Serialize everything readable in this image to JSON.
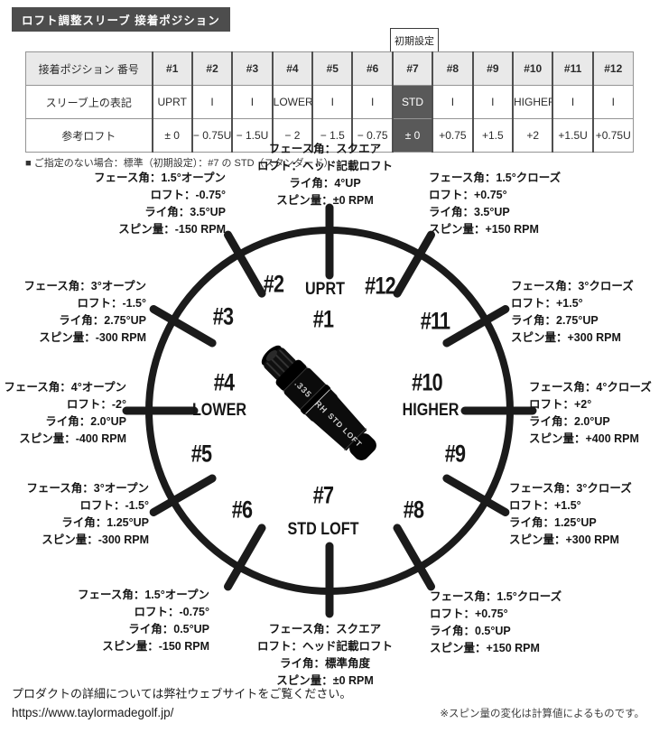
{
  "title": "ロフト調整スリーブ 接着ポジション",
  "table": {
    "preset_label": "初期設定",
    "rows": [
      {
        "label": "接着ポジション 番号",
        "cells": [
          "#1",
          "#2",
          "#3",
          "#4",
          "#5",
          "#6",
          "#7",
          "#8",
          "#9",
          "#10",
          "#11",
          "#12"
        ]
      },
      {
        "label": "スリーブ上の表記",
        "cells": [
          "UPRT",
          "I",
          "I",
          "LOWER",
          "I",
          "I",
          "STD",
          "I",
          "I",
          "HIGHER",
          "I",
          "I"
        ]
      },
      {
        "label": "参考ロフト",
        "cells": [
          "± 0",
          "− 0.75U",
          "− 1.5U",
          "− 2",
          "− 1.5",
          "− 0.75",
          "± 0",
          "+0.75",
          "+1.5",
          "+2",
          "+1.5U",
          "+0.75U"
        ]
      }
    ],
    "note": "■ ご指定のない場合：標準（初期設定）：#7 の STD（スタンダード）"
  },
  "dial": {
    "positions": [
      {
        "number": "#1",
        "word": "UPRT"
      },
      {
        "number": "#2"
      },
      {
        "number": "#3"
      },
      {
        "number": "#4",
        "word": "LOWER"
      },
      {
        "number": "#5"
      },
      {
        "number": "#6"
      },
      {
        "number": "#7",
        "word": "STD LOFT"
      },
      {
        "number": "#8"
      },
      {
        "number": "#9"
      },
      {
        "number": "#10",
        "word": "HIGHER"
      },
      {
        "number": "#11"
      },
      {
        "number": "#12"
      }
    ],
    "annotations": [
      {
        "id": "p2",
        "for": "#2",
        "lines": [
          "フェース角：1.5°オープン",
          "ロフト：-0.75°",
          "ライ角：3.5°UP",
          "スピン量：-150 RPM"
        ]
      },
      {
        "id": "top",
        "for": "#1",
        "lines": [
          "フェース角：スクエア",
          "ロフト：ヘッド記載ロフト",
          "ライ角：4°UP",
          "スピン量：±0 RPM"
        ]
      },
      {
        "id": "p12",
        "for": "#12",
        "lines": [
          "フェース角：1.5°クローズ",
          "ロフト：+0.75°",
          "ライ角：3.5°UP",
          "スピン量：+150 RPM"
        ]
      },
      {
        "id": "p3",
        "for": "#3",
        "lines": [
          "フェース角：3°オープン",
          "ロフト：-1.5°",
          "ライ角：2.75°UP",
          "スピン量：-300 RPM"
        ]
      },
      {
        "id": "p11",
        "for": "#11",
        "lines": [
          "フェース角：3°クローズ",
          "ロフト：+1.5°",
          "ライ角：2.75°UP",
          "スピン量：+300 RPM"
        ]
      },
      {
        "id": "p4",
        "for": "#4",
        "lines": [
          "フェース角：4°オープン",
          "ロフト：-2°",
          "ライ角：2.0°UP",
          "スピン量：-400 RPM"
        ]
      },
      {
        "id": "p10",
        "for": "#10",
        "lines": [
          "フェース角：4°クローズ",
          "ロフト：+2°",
          "ライ角：2.0°UP",
          "スピン量：+400 RPM"
        ]
      },
      {
        "id": "p5",
        "for": "#5",
        "lines": [
          "フェース角：3°オープン",
          "ロフト：-1.5°",
          "ライ角：1.25°UP",
          "スピン量：-300 RPM"
        ]
      },
      {
        "id": "p9",
        "for": "#9",
        "lines": [
          "フェース角：3°クローズ",
          "ロフト：+1.5°",
          "ライ角：1.25°UP",
          "スピン量：+300 RPM"
        ]
      },
      {
        "id": "p6",
        "for": "#6",
        "lines": [
          "フェース角：1.5°オープン",
          "ロフト：-0.75°",
          "ライ角：0.5°UP",
          "スピン量：-150 RPM"
        ]
      },
      {
        "id": "p8",
        "for": "#8",
        "lines": [
          "フェース角：1.5°クローズ",
          "ロフト：+0.75°",
          "ライ角：0.5°UP",
          "スピン量：+150 RPM"
        ]
      },
      {
        "id": "bottom",
        "for": "#7",
        "lines": [
          "フェース角：スクエア",
          "ロフト：ヘッド記載ロフト",
          "ライ角：標準角度",
          "スピン量：±0 RPM"
        ]
      }
    ]
  },
  "sleeve": {
    "size_label": ".335",
    "hand_label": "RH",
    "loft_label": "STD LOFT"
  },
  "footer": {
    "text": "プロダクトの詳細については弊社ウェブサイトをご覧ください。",
    "url": "https://www.taylormadegolf.jp/",
    "note": "※スピン量の変化は計算値によるものです。"
  },
  "colors": {
    "accent_dark": "#4d4d4d",
    "cell_dark": "#595959",
    "header_bg": "#e9e9e9",
    "ink": "#1b1b1b"
  }
}
